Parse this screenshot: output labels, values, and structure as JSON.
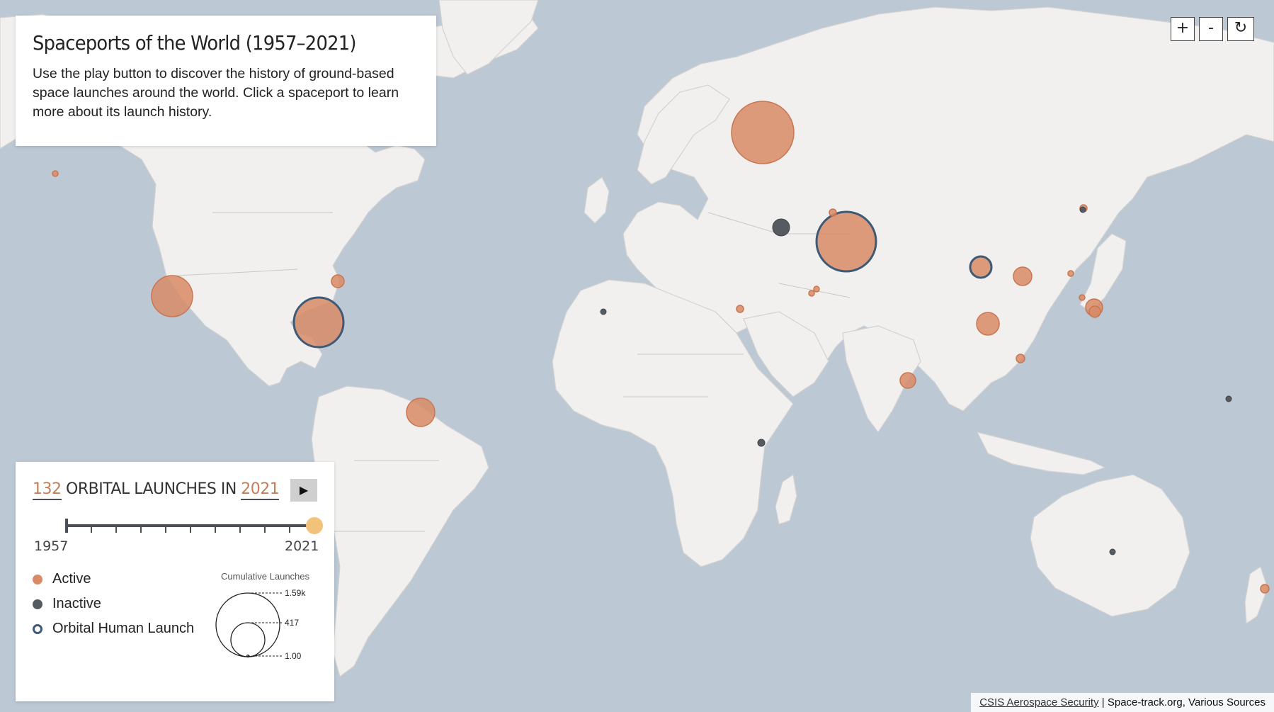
{
  "title": "Spaceports of the World (1957–2021)",
  "description": "Use the play button to discover the history of ground-based space launches around the world. Click a spaceport to learn more about its launch history.",
  "zoom_controls": {
    "zoom_in": "+",
    "zoom_out": "-",
    "reset": "↻"
  },
  "summary": {
    "launch_count": "132",
    "middle_text": "ORBITAL LAUNCHES IN",
    "year": "2021",
    "play_label": "▶"
  },
  "timeline": {
    "start": "1957",
    "end": "2021",
    "current": 2021
  },
  "legend": {
    "active": "Active",
    "inactive": "Inactive",
    "human": "Orbital Human Launch",
    "size_title": "Cumulative Launches",
    "size_values": [
      "1.59k",
      "417",
      "1.00"
    ]
  },
  "attribution": {
    "link": "CSIS Aerospace Security",
    "sources": "Space-track.org, Various Sources"
  },
  "colors": {
    "active": "#d88b66",
    "inactive": "#555b60",
    "human_outline": "#3f5a76",
    "ocean": "#bcc8d3",
    "land": "#f1f0ee",
    "timeline_knob": "#f2c27a"
  }
}
